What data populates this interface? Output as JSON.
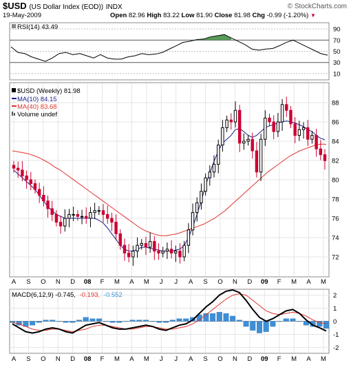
{
  "header": {
    "symbol": "$USD",
    "description": "(US Dollar Index (EOD))",
    "exchange": "INDX",
    "date": "19-May-2009",
    "open_label": "Open",
    "open": "82.96",
    "high_label": "High",
    "high": "83.22",
    "low_label": "Low",
    "low": "81.90",
    "close_label": "Close",
    "close": "81.98",
    "chg_label": "Chg",
    "chg": "-0.99 (-1.20%)",
    "brand": "© StockCharts.com"
  },
  "colors": {
    "up": "#000000",
    "down": "#cc0033",
    "ma10": "#1a1a8c",
    "ma40": "#e0342c",
    "rsi_ob": "#3c8a3c",
    "rsi_os": "#b84a4a",
    "hist": "#3d8fd6"
  },
  "chart_data": [
    {
      "type": "line",
      "title": "RSI(14) 43.49",
      "legend": "RSI(14) 43.49",
      "ylim": [
        0,
        100
      ],
      "yticks": [
        10,
        30,
        50,
        70,
        90
      ],
      "refs": [
        30,
        70
      ],
      "x": [
        0,
        2,
        4,
        6,
        8,
        10,
        12,
        14,
        16,
        18,
        20,
        22,
        24,
        26,
        28,
        30,
        32,
        34,
        36,
        38,
        40,
        42,
        44,
        46,
        48,
        50,
        52,
        54,
        56,
        58,
        60,
        62,
        64,
        66,
        68,
        70,
        72,
        74,
        76,
        78,
        80,
        82,
        84,
        86,
        88,
        90,
        92
      ],
      "series": [
        {
          "values": [
            58,
            48,
            46,
            40,
            36,
            32,
            38,
            46,
            48,
            44,
            46,
            42,
            38,
            44,
            38,
            36,
            36,
            40,
            42,
            46,
            44,
            45,
            48,
            54,
            60,
            66,
            68,
            71,
            72,
            76,
            78,
            80,
            74,
            68,
            62,
            54,
            52,
            54,
            55,
            60,
            66,
            70,
            64,
            58,
            52,
            46,
            43
          ]
        }
      ]
    },
    {
      "type": "candlestick",
      "legend": [
        {
          "label": "$USD (Weekly) 81.98"
        },
        {
          "label": "MA(10) 84.15"
        },
        {
          "label": "MA(40) 83.68"
        },
        {
          "label": "Volume undef"
        }
      ],
      "ylim": [
        70,
        90
      ],
      "yticks": [
        72,
        74,
        76,
        78,
        80,
        82,
        84,
        86,
        88
      ],
      "xticks": [
        "A",
        "S",
        "O",
        "N",
        "D",
        "08",
        "F",
        "M",
        "A",
        "M",
        "J",
        "J",
        "A",
        "S",
        "O",
        "N",
        "D",
        "09",
        "F",
        "M",
        "A",
        "M"
      ],
      "close": [
        81.2,
        81.0,
        80.4,
        80.0,
        79.6,
        79.0,
        78.4,
        77.8,
        77.0,
        76.4,
        75.6,
        75.2,
        76.0,
        76.4,
        76.4,
        76.2,
        76.2,
        76.0,
        76.6,
        76.8,
        76.8,
        76.4,
        76.0,
        75.6,
        74.4,
        73.2,
        72.4,
        72.0,
        72.6,
        73.2,
        73.4,
        73.0,
        73.6,
        72.6,
        72.4,
        72.6,
        72.8,
        72.4,
        72.6,
        72.0,
        73.2,
        74.8,
        76.6,
        77.6,
        78.8,
        80.2,
        80.8,
        81.6,
        83.6,
        85.4,
        86.2,
        86.0,
        87.2,
        83.8,
        84.0,
        84.2,
        83.0,
        80.8,
        84.2,
        86.4,
        86.0,
        85.0,
        86.0,
        87.8,
        87.2,
        85.8,
        84.6,
        85.2,
        85.4,
        84.2,
        84.6,
        83.2,
        82.6,
        81.98
      ],
      "ma10": [
        81.0,
        80.6,
        80.2,
        79.8,
        79.4,
        79.0,
        78.4,
        77.8,
        77.2,
        76.8,
        76.4,
        76.2,
        76.0,
        76.0,
        76.0,
        76.0,
        76.0,
        76.0,
        76.0,
        76.0,
        75.8,
        75.5,
        75.0,
        74.4,
        73.8,
        73.2,
        72.8,
        72.6,
        72.6,
        72.8,
        73.0,
        73.0,
        72.9,
        72.8,
        72.7,
        72.6,
        72.6,
        72.6,
        72.7,
        72.8,
        73.2,
        74.0,
        75.1,
        76.4,
        77.8,
        79.4,
        80.7,
        81.9,
        83.0,
        83.8,
        84.2,
        84.6,
        85.2,
        85.3,
        85.0,
        84.6,
        84.4,
        84.6,
        85.0,
        85.4,
        85.6,
        85.7,
        85.9,
        86.0,
        86.1,
        86.0,
        85.9,
        85.7,
        85.5,
        85.2,
        85.0,
        84.6,
        84.3,
        84.15
      ],
      "ma40": [
        83.0,
        82.9,
        82.8,
        82.7,
        82.5,
        82.3,
        82.0,
        81.7,
        81.3,
        81.0,
        80.6,
        80.2,
        79.8,
        79.4,
        79.0,
        78.6,
        78.2,
        77.8,
        77.4,
        77.0,
        76.6,
        76.2,
        75.8,
        75.4,
        75.0,
        74.7,
        74.5,
        74.3,
        74.2,
        74.2,
        74.3,
        74.4,
        74.6,
        74.8,
        75.0,
        75.2,
        75.4,
        75.7,
        76.0,
        76.4,
        76.8,
        77.3,
        77.8,
        78.3,
        78.8,
        79.3,
        79.8,
        80.3,
        80.8,
        81.2,
        81.6,
        82.0,
        82.4,
        82.7,
        83.0,
        83.2,
        83.4,
        83.6,
        83.7,
        83.68
      ]
    },
    {
      "type": "line",
      "title": "MACD(6,12,9) -0.745, -0.193, -0.552",
      "legend": [
        "MACD(6,12,9) -0.745,",
        "-0.193,",
        "-0.552"
      ],
      "ylim": [
        -2.4,
        2.4
      ],
      "yticks": [
        -2,
        -1,
        0,
        1,
        2
      ],
      "xticks": [
        "A",
        "S",
        "O",
        "N",
        "D",
        "08",
        "F",
        "M",
        "A",
        "M",
        "J",
        "J",
        "A",
        "S",
        "O",
        "N",
        "D",
        "09",
        "F",
        "M",
        "A",
        "M"
      ],
      "series": [
        {
          "values": [
            -0.2,
            -0.5,
            -0.8,
            -0.9,
            -0.8,
            -0.6,
            -0.5,
            -0.6,
            -0.8,
            -0.9,
            -0.6,
            -0.3,
            -0.2,
            -0.1,
            -0.3,
            -0.5,
            -0.6,
            -0.6,
            -0.5,
            -0.4,
            -0.3,
            -0.4,
            -0.6,
            -0.7,
            -0.5,
            -0.3,
            -0.2,
            0.1,
            0.6,
            1.1,
            1.5,
            2.0,
            2.3,
            2.4,
            2.2,
            1.6,
            0.9,
            0.3,
            0.0,
            0.2,
            0.5,
            0.8,
            0.9,
            0.6,
            0.1,
            -0.3,
            -0.5,
            -0.745
          ]
        },
        {
          "values": [
            -0.1,
            -0.2,
            -0.4,
            -0.6,
            -0.7,
            -0.7,
            -0.6,
            -0.6,
            -0.7,
            -0.8,
            -0.7,
            -0.6,
            -0.4,
            -0.3,
            -0.3,
            -0.4,
            -0.5,
            -0.6,
            -0.6,
            -0.5,
            -0.4,
            -0.4,
            -0.5,
            -0.6,
            -0.6,
            -0.5,
            -0.4,
            -0.2,
            0.1,
            0.5,
            0.9,
            1.3,
            1.7,
            2.0,
            2.1,
            2.0,
            1.6,
            1.2,
            0.8,
            0.6,
            0.5,
            0.6,
            0.7,
            0.6,
            0.4,
            0.1,
            -0.1,
            -0.193
          ]
        },
        {
          "values": [
            -0.1,
            -0.3,
            -0.4,
            -0.3,
            -0.1,
            0.1,
            0.1,
            0.0,
            -0.1,
            -0.1,
            0.1,
            0.3,
            0.2,
            0.2,
            0.0,
            -0.1,
            -0.1,
            0.0,
            0.1,
            0.1,
            0.1,
            0.0,
            -0.1,
            -0.1,
            0.1,
            0.2,
            0.2,
            0.3,
            0.5,
            0.6,
            0.6,
            0.7,
            0.6,
            0.4,
            0.1,
            -0.4,
            -0.7,
            -0.9,
            -0.8,
            -0.4,
            0.0,
            0.2,
            0.2,
            0.0,
            -0.3,
            -0.4,
            -0.4,
            -0.552
          ]
        }
      ]
    }
  ]
}
